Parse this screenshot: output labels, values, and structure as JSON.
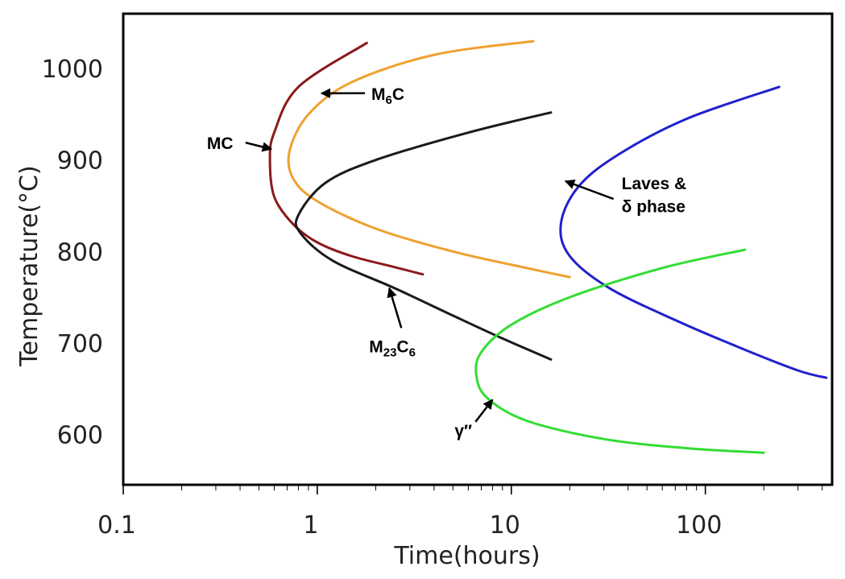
{
  "chart_data": {
    "type": "line",
    "title": "",
    "xlabel": "Time(hours)",
    "ylabel": "Temperature(°C)",
    "x_scale": "log",
    "xlim": [
      0.1,
      450
    ],
    "ylim": [
      545,
      1060
    ],
    "x_ticks": [
      0.1,
      1,
      10,
      100
    ],
    "x_tick_labels": [
      "0.1",
      "1",
      "10",
      "100"
    ],
    "y_ticks": [
      600,
      700,
      800,
      900,
      1000
    ],
    "y_tick_labels": [
      "600",
      "700",
      "800",
      "900",
      "1000"
    ],
    "grid": false,
    "legend": "none",
    "series": [
      {
        "name": "MC",
        "color": "#8b1a1a",
        "points": [
          [
            1.8,
            1028
          ],
          [
            0.8,
            980
          ],
          [
            0.6,
            930
          ],
          [
            0.57,
            900
          ],
          [
            0.6,
            860
          ],
          [
            0.75,
            830
          ],
          [
            1.0,
            810
          ],
          [
            1.5,
            795
          ],
          [
            2.5,
            783
          ],
          [
            3.5,
            775
          ]
        ]
      },
      {
        "name": "M6C",
        "color": "#f0a030",
        "points": [
          [
            13,
            1030
          ],
          [
            4,
            1015
          ],
          [
            1.5,
            985
          ],
          [
            0.9,
            950
          ],
          [
            0.72,
            910
          ],
          [
            0.75,
            880
          ],
          [
            1.0,
            855
          ],
          [
            2.0,
            825
          ],
          [
            5.0,
            800
          ],
          [
            12,
            782
          ],
          [
            20,
            772
          ]
        ]
      },
      {
        "name": "M23C6",
        "color": "#1a1a1a",
        "points": [
          [
            16,
            952
          ],
          [
            6,
            930
          ],
          [
            2.0,
            900
          ],
          [
            1.1,
            875
          ],
          [
            0.8,
            840
          ],
          [
            0.82,
            820
          ],
          [
            1.2,
            790
          ],
          [
            2.5,
            760
          ],
          [
            5.0,
            730
          ],
          [
            9,
            705
          ],
          [
            16,
            682
          ]
        ]
      },
      {
        "name": "Laves & δ phase",
        "color": "#2020cc",
        "points": [
          [
            240,
            980
          ],
          [
            80,
            945
          ],
          [
            35,
            905
          ],
          [
            22,
            870
          ],
          [
            18,
            830
          ],
          [
            20,
            795
          ],
          [
            32,
            760
          ],
          [
            70,
            725
          ],
          [
            150,
            695
          ],
          [
            300,
            670
          ],
          [
            420,
            662
          ]
        ]
      },
      {
        "name": "γ′′",
        "color": "#33dd33",
        "points": [
          [
            160,
            802
          ],
          [
            60,
            782
          ],
          [
            20,
            750
          ],
          [
            10,
            720
          ],
          [
            7,
            690
          ],
          [
            6.6,
            665
          ],
          [
            7.5,
            640
          ],
          [
            12,
            615
          ],
          [
            30,
            595
          ],
          [
            80,
            585
          ],
          [
            200,
            580
          ]
        ]
      }
    ],
    "annotations": [
      {
        "text": "MC",
        "sub": "",
        "target": [
          0.58,
          912
        ],
        "label_at": [
          0.27,
          912
        ]
      },
      {
        "text": "M",
        "sub": "6",
        "suffix": "C",
        "target": [
          1.05,
          973
        ],
        "label_at": [
          1.9,
          966
        ]
      },
      {
        "text": "M",
        "sub": "23",
        "suffix": "C",
        "sub2": "6",
        "target": [
          2.35,
          760
        ],
        "label_at": [
          1.85,
          690
        ]
      },
      {
        "text": "Laves   &",
        "sub": "",
        "target": [
          19.0,
          877
        ],
        "label_at": [
          37,
          868
        ]
      },
      {
        "text": "δ phase",
        "sub": "",
        "target": null,
        "label_at": [
          37,
          843
        ]
      },
      {
        "text": "γ′′",
        "sub": "",
        "target": [
          8.0,
          638
        ],
        "label_at": [
          5.1,
          598
        ]
      }
    ]
  }
}
